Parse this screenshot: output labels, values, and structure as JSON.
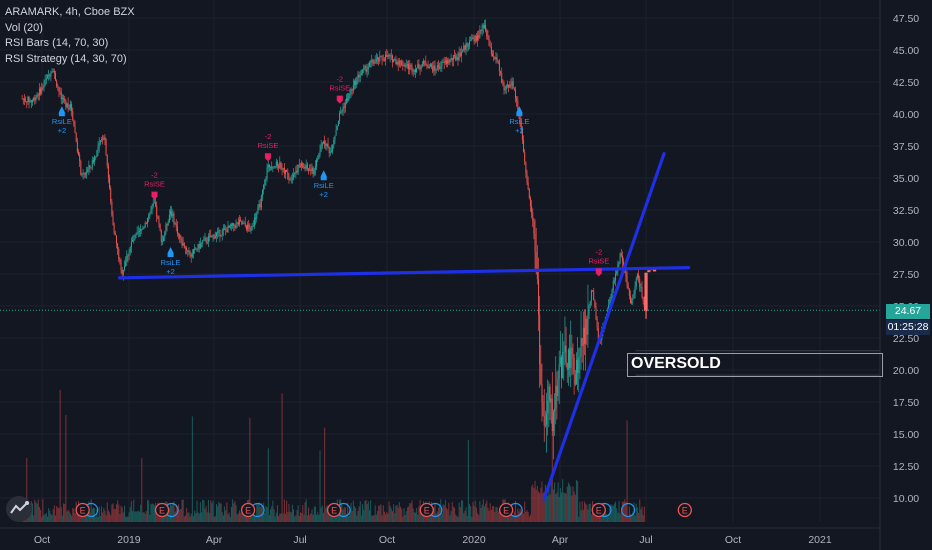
{
  "legend": {
    "title": "ARAMARK, 4h, Cboe BZX",
    "vol": "Vol (20)",
    "rsi_bars": "RSI Bars (14, 70, 30)",
    "rsi_strategy": "RSI Strategy (14, 30, 70)"
  },
  "annotation": {
    "text": "OVERSOLD"
  },
  "price_tags": {
    "last_price": "24.67",
    "countdown": "01:25:28"
  },
  "colors": {
    "background": "#131722",
    "up": "#26a69a",
    "down": "#ef5350",
    "trendline": "#1f2fe6",
    "signal_long": "#2196f3",
    "signal_short": "#e91e63",
    "price_tag": "#26a69a",
    "countdown_tag": "#1a2b4a"
  },
  "chart_data": {
    "type": "candlestick",
    "y_axis": {
      "range": [
        8.8,
        48.3
      ],
      "ticks": [
        "47.50",
        "45.00",
        "42.50",
        "40.00",
        "37.50",
        "35.00",
        "32.50",
        "30.00",
        "27.50",
        "25.00",
        "22.50",
        "20.00",
        "17.50",
        "15.00",
        "12.50",
        "10.00"
      ]
    },
    "x_axis": {
      "range": [
        "2018-09-10",
        "2021-02-10"
      ],
      "ticks": [
        {
          "label": "Oct",
          "date": "2018-10-01"
        },
        {
          "label": "2019",
          "date": "2019-01-01"
        },
        {
          "label": "Apr",
          "date": "2019-04-01"
        },
        {
          "label": "Jul",
          "date": "2019-07-01"
        },
        {
          "label": "Oct",
          "date": "2019-10-01"
        },
        {
          "label": "2020",
          "date": "2020-01-01"
        },
        {
          "label": "Apr",
          "date": "2020-04-01"
        },
        {
          "label": "Jul",
          "date": "2020-07-01"
        },
        {
          "label": "Oct",
          "date": "2020-10-01"
        },
        {
          "label": "2021",
          "date": "2021-01-01"
        }
      ]
    },
    "price_path": [
      [
        "2018-09-10",
        41.2
      ],
      [
        "2018-09-20",
        41.0
      ],
      [
        "2018-10-01",
        42.0
      ],
      [
        "2018-10-12",
        43.6
      ],
      [
        "2018-10-22",
        41.0
      ],
      [
        "2018-11-01",
        40.5
      ],
      [
        "2018-11-12",
        35.0
      ],
      [
        "2018-11-22",
        36.0
      ],
      [
        "2018-12-06",
        38.5
      ],
      [
        "2018-12-14",
        32.0
      ],
      [
        "2018-12-24",
        27.5
      ],
      [
        "2019-01-04",
        30.0
      ],
      [
        "2019-01-15",
        31.0
      ],
      [
        "2019-01-28",
        33.0
      ],
      [
        "2019-02-05",
        30.0
      ],
      [
        "2019-02-14",
        32.5
      ],
      [
        "2019-02-25",
        30.0
      ],
      [
        "2019-03-08",
        29.0
      ],
      [
        "2019-03-20",
        30.0
      ],
      [
        "2019-04-01",
        30.5
      ],
      [
        "2019-04-15",
        31.0
      ],
      [
        "2019-04-28",
        31.5
      ],
      [
        "2019-05-10",
        31.0
      ],
      [
        "2019-05-20",
        33.0
      ],
      [
        "2019-05-28",
        36.0
      ],
      [
        "2019-06-10",
        36.0
      ],
      [
        "2019-06-20",
        35.0
      ],
      [
        "2019-07-01",
        36.0
      ],
      [
        "2019-07-15",
        35.5
      ],
      [
        "2019-07-26",
        38.0
      ],
      [
        "2019-08-02",
        37.0
      ],
      [
        "2019-08-12",
        40.0
      ],
      [
        "2019-08-22",
        41.5
      ],
      [
        "2019-09-01",
        43.0
      ],
      [
        "2019-09-15",
        44.0
      ],
      [
        "2019-10-01",
        44.5
      ],
      [
        "2019-10-15",
        44.0
      ],
      [
        "2019-10-30",
        43.5
      ],
      [
        "2019-11-10",
        44.0
      ],
      [
        "2019-11-20",
        43.5
      ],
      [
        "2019-12-01",
        44.0
      ],
      [
        "2019-12-15",
        44.5
      ],
      [
        "2019-12-25",
        45.5
      ],
      [
        "2020-01-05",
        46.0
      ],
      [
        "2020-01-12",
        47.0
      ],
      [
        "2020-01-18",
        45.0
      ],
      [
        "2020-01-26",
        44.0
      ],
      [
        "2020-02-01",
        42.0
      ],
      [
        "2020-02-10",
        42.5
      ],
      [
        "2020-02-18",
        40.0
      ],
      [
        "2020-02-25",
        35.0
      ],
      [
        "2020-03-03",
        32.0
      ],
      [
        "2020-03-08",
        27.0
      ],
      [
        "2020-03-12",
        18.0
      ],
      [
        "2020-03-16",
        15.0
      ],
      [
        "2020-03-20",
        18.0
      ],
      [
        "2020-03-24",
        16.0
      ],
      [
        "2020-03-30",
        20.0
      ],
      [
        "2020-04-08",
        21.0
      ],
      [
        "2020-04-18",
        20.0
      ],
      [
        "2020-04-28",
        23.0
      ],
      [
        "2020-05-05",
        26.5
      ],
      [
        "2020-05-12",
        22.0
      ],
      [
        "2020-05-20",
        24.0
      ],
      [
        "2020-05-28",
        27.0
      ],
      [
        "2020-06-04",
        29.0
      ],
      [
        "2020-06-10",
        27.0
      ],
      [
        "2020-06-15",
        25.0
      ],
      [
        "2020-06-22",
        27.5
      ],
      [
        "2020-06-30",
        24.67
      ]
    ],
    "highlighted_bars": [
      {
        "date": "2020-07-01",
        "open": 27.6,
        "close": 24.6,
        "low": 24.0
      },
      {
        "date": "2020-07-04",
        "open": 27.8,
        "close": 27.7
      },
      {
        "date": "2020-07-07",
        "open": 28.0,
        "close": 27.8
      },
      {
        "date": "2020-07-10",
        "open": 27.9,
        "close": 27.7
      }
    ],
    "trendlines": [
      {
        "from": [
          "2018-12-22",
          27.2
        ],
        "to": [
          "2020-08-15",
          28.0
        ]
      },
      {
        "from": [
          "2020-03-15",
          9.9
        ],
        "to": [
          "2020-07-20",
          36.9
        ]
      }
    ],
    "signals": [
      {
        "type": "short",
        "label": "RsiSE",
        "value": "-2",
        "date": "2019-01-28",
        "price": 33.0
      },
      {
        "type": "short",
        "label": "RsiSE",
        "value": "-2",
        "date": "2019-05-28",
        "price": 36.0
      },
      {
        "type": "short",
        "label": "RsiSE",
        "value": "-2",
        "date": "2019-08-12",
        "price": 40.5
      },
      {
        "type": "short",
        "label": "RsiSE",
        "value": "-2",
        "date": "2020-05-12",
        "price": 27.0
      },
      {
        "type": "long",
        "label": "RsiLE",
        "value": "+2",
        "date": "2018-10-22",
        "price": 41.0
      },
      {
        "type": "long",
        "label": "RsiLE",
        "value": "+2",
        "date": "2019-02-14",
        "price": 30.0
      },
      {
        "type": "long",
        "label": "RsiLE",
        "value": "+2",
        "date": "2019-07-26",
        "price": 36.0
      },
      {
        "type": "long",
        "label": "RsiLE",
        "value": "+2",
        "date": "2020-02-18",
        "price": 41.0
      }
    ],
    "earnings_markers": {
      "label": "E",
      "dates": [
        "2018-11-13",
        "2019-02-05",
        "2019-05-07",
        "2019-08-06",
        "2019-11-12",
        "2020-02-04",
        "2020-05-12",
        "2020-08-11"
      ],
      "dividend_dates": [
        "2018-11-22",
        "2019-02-15",
        "2019-05-17",
        "2019-08-16",
        "2019-11-21",
        "2020-02-14",
        "2020-05-18",
        "2020-06-12"
      ]
    },
    "last_price": 24.67,
    "oversold_zone": {
      "from_date": "2020-06-20",
      "upper": 21.5,
      "lower": 19.6
    }
  }
}
